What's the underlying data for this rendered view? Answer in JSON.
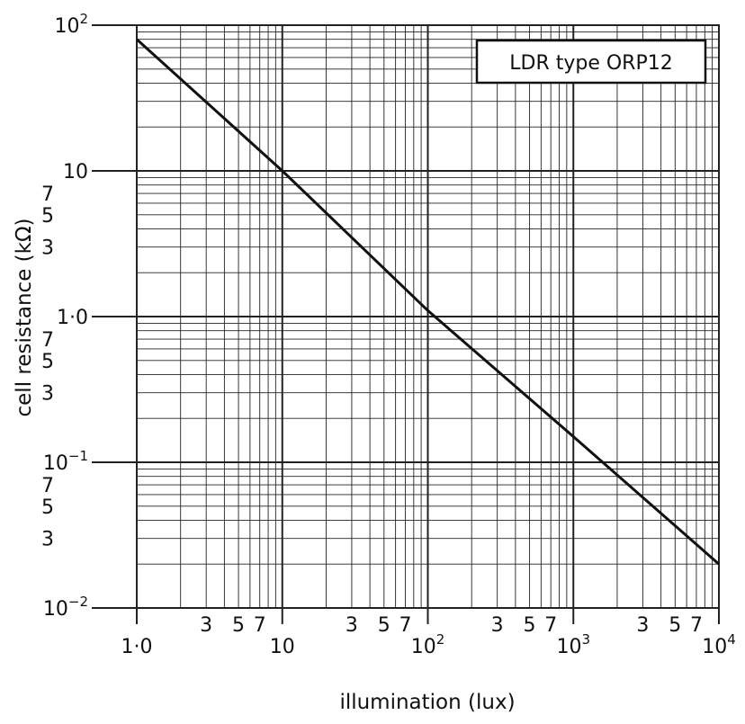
{
  "chart_data": {
    "type": "line",
    "title": "",
    "legend_label": "LDR type ORP12",
    "legend_placement": "top-right",
    "xlabel": "illumination (lux)",
    "ylabel": "cell resistance (kΩ)",
    "x_scale": "log",
    "y_scale": "log",
    "xlim": [
      1,
      10000
    ],
    "ylim": [
      0.01,
      100
    ],
    "grid": true,
    "x_major_ticks": [
      {
        "value": 1,
        "label": "1·0"
      },
      {
        "value": 10,
        "label": "10"
      },
      {
        "value": 100,
        "label": "10",
        "exp": "2"
      },
      {
        "value": 1000,
        "label": "10",
        "exp": "3"
      },
      {
        "value": 10000,
        "label": "10",
        "exp": "4"
      }
    ],
    "x_minor_labels": [
      "3",
      "5",
      "7"
    ],
    "y_major_ticks": [
      {
        "value": 0.01,
        "label": "10",
        "exp": "−2"
      },
      {
        "value": 0.1,
        "label": "10",
        "exp": "−1"
      },
      {
        "value": 1,
        "label": "1·0"
      },
      {
        "value": 10,
        "label": "10"
      },
      {
        "value": 100,
        "label": "10",
        "exp": "2"
      }
    ],
    "y_minor_labels": [
      "3",
      "5",
      "7"
    ],
    "series": [
      {
        "x": [
          1,
          10,
          100,
          1000,
          10000
        ],
        "y": [
          80,
          10,
          1.1,
          0.15,
          0.02
        ]
      }
    ],
    "colors": {
      "line": "#111111",
      "grid": "#222222"
    }
  }
}
